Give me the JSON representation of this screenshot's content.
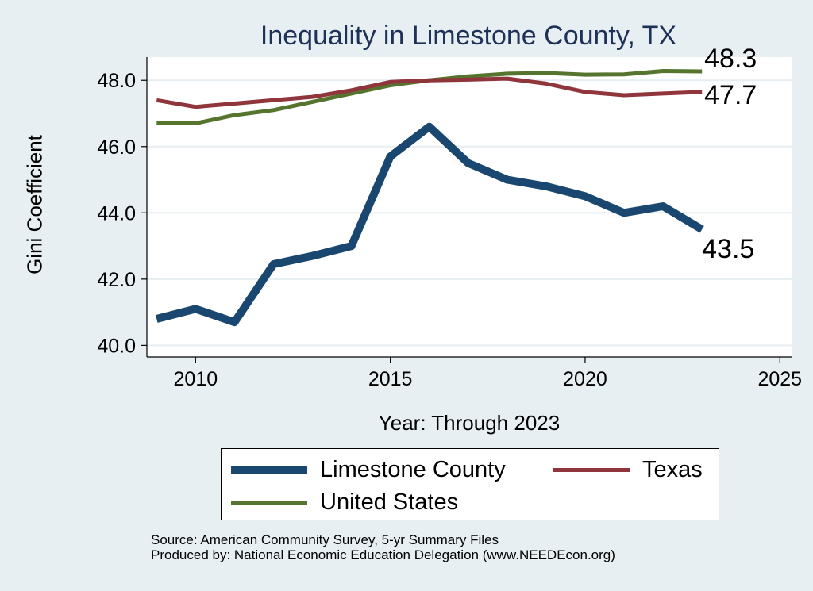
{
  "chart_data": {
    "type": "line",
    "title": "Inequality in Limestone County, TX",
    "xlabel": "Year: Through 2023",
    "ylabel": "Gini Coefficient",
    "xlim": [
      2008.75,
      2025.3
    ],
    "ylim": [
      39.65,
      48.7
    ],
    "xticks": [
      2010,
      2015,
      2020,
      2025
    ],
    "yticks": [
      40,
      42,
      44,
      46,
      48
    ],
    "ytick_labels": [
      "40.0",
      "42.0",
      "44.0",
      "46.0",
      "48.0"
    ],
    "grid": true,
    "x": [
      2009,
      2010,
      2011,
      2012,
      2013,
      2014,
      2015,
      2016,
      2017,
      2018,
      2019,
      2020,
      2021,
      2022,
      2023
    ],
    "series": [
      {
        "name": "Limestone County",
        "color": "#1a476f",
        "values": [
          40.8,
          41.1,
          40.7,
          42.45,
          42.7,
          43.0,
          45.7,
          46.6,
          45.5,
          45.0,
          44.8,
          44.5,
          44.0,
          44.2,
          43.5
        ],
        "end_label": "43.5"
      },
      {
        "name": "Texas",
        "color": "#90353b",
        "values": [
          47.4,
          47.2,
          47.3,
          47.4,
          47.5,
          47.7,
          47.95,
          48.0,
          48.02,
          48.05,
          47.9,
          47.65,
          47.55,
          47.6,
          47.65
        ],
        "end_label": "47.7"
      },
      {
        "name": "United States",
        "color": "#55752f",
        "values": [
          46.7,
          46.7,
          46.95,
          47.1,
          47.35,
          47.6,
          47.85,
          48.0,
          48.12,
          48.2,
          48.22,
          48.17,
          48.18,
          48.28,
          48.27
        ],
        "end_label": "48.3"
      }
    ],
    "legend": {
      "position": "bottom",
      "entries": [
        "Limestone County",
        "Texas",
        "United States"
      ]
    }
  },
  "source": {
    "line1": "Source: American Community Survey, 5-yr Summary Files",
    "line2": "Produced by: National Economic Education Delegation (www.NEEDEcon.org)"
  }
}
